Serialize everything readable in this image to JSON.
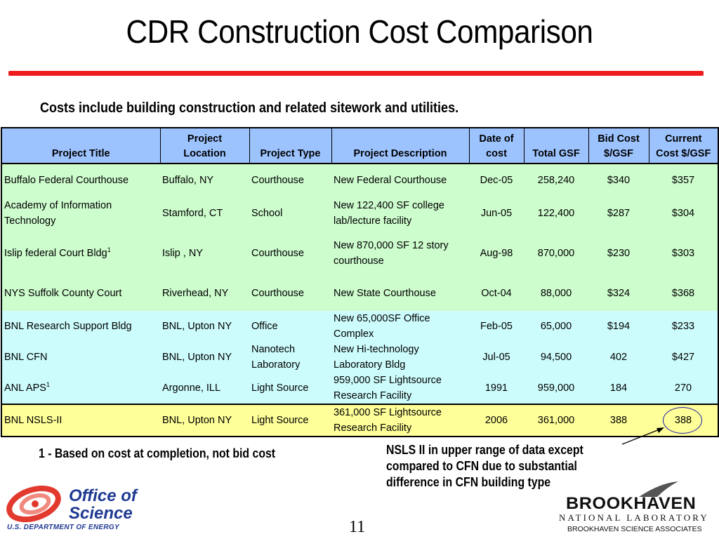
{
  "slide": {
    "title": "CDR Construction Cost Comparison",
    "subtitle": "Costs include building construction and related sitework and utilities.",
    "page_number": "11"
  },
  "table": {
    "headers": {
      "project_title": "Project Title",
      "project_location_1": "Project",
      "project_location_2": "Location",
      "project_type": "Project Type",
      "project_description": "Project Description",
      "date_of_cost_1": "Date of",
      "date_of_cost_2": "cost",
      "total_gsf": "Total GSF",
      "bid_cost_1": "Bid Cost",
      "bid_cost_2": "$/GSF",
      "current_cost_1": "Current",
      "current_cost_2": "Cost $/GSF"
    },
    "rows": [
      {
        "title": "Buffalo Federal Courthouse",
        "sup": "",
        "location": "Buffalo, NY",
        "type": "Courthouse",
        "description": "New Federal Courthouse",
        "date": "Dec-05",
        "gsf": "258,240",
        "bid": "$340",
        "current": "$357"
      },
      {
        "title": "Academy of Information Technology",
        "sup": "",
        "location": "Stamford, CT",
        "type": "School",
        "description": "New 122,400 SF college lab/lecture facility",
        "date": "Jun-05",
        "gsf": "122,400",
        "bid": "$287",
        "current": "$304"
      },
      {
        "title": "Islip federal Court Bldg",
        "sup": "1",
        "location": "Islip , NY",
        "type": "Courthouse",
        "description": "New 870,000 SF 12 story courthouse",
        "date": "Aug-98",
        "gsf": "870,000",
        "bid": "$230",
        "current": "$303"
      },
      {
        "title": "NYS Suffolk County Court",
        "sup": "",
        "location": "Riverhead, NY",
        "type": "Courthouse",
        "description": "New State Courthouse",
        "date": "Oct-04",
        "gsf": "88,000",
        "bid": "$324",
        "current": "$368"
      },
      {
        "title": "BNL Research Support Bldg",
        "sup": "",
        "location": "BNL, Upton NY",
        "type": "Office",
        "description": "New 65,000SF Office Complex",
        "date": "Feb-05",
        "gsf": "65,000",
        "bid": "$194",
        "current": "$233"
      },
      {
        "title": "BNL CFN",
        "sup": "",
        "location": "BNL, Upton NY",
        "type": "Nanotech Laboratory",
        "description": "New Hi-technology Laboratory Bldg",
        "date": "Jul-05",
        "gsf": "94,500",
        "bid": "402",
        "current": "$427"
      },
      {
        "title": "ANL APS",
        "sup": "1",
        "location": "Argonne, ILL",
        "type": "Light Source",
        "description": "959,000 SF Lightsource Research Facility",
        "date": "1991",
        "gsf": "959,000",
        "bid": "184",
        "current": "270"
      },
      {
        "title": "BNL NSLS-II",
        "sup": "",
        "location": "BNL, Upton NY",
        "type": "Light Source",
        "description": "361,000 SF Lightsource Research Facility",
        "date": "2006",
        "gsf": "361,000",
        "bid": "388",
        "current": "388"
      }
    ]
  },
  "footnote": {
    "marker": "1",
    "text": " - Based on cost at completion, not bid cost"
  },
  "callout": {
    "line1": "NSLS II in upper range of data except",
    "line2": "compared to CFN due to substantial",
    "line3": "difference in CFN building type"
  },
  "logos": {
    "doe_line1": "Office of",
    "doe_line2": "Science",
    "doe_sub": "U.S. DEPARTMENT OF ENERGY",
    "bnl_main": "BROOKHAVEN",
    "bnl_natl": "NATIONAL LABORATORY",
    "bnl_assoc": "BROOKHAVEN SCIENCE ASSOCIATES"
  },
  "colors": {
    "header": "#9dc3ff",
    "green_rows": "#cdfccd",
    "cyan_rows": "#cdfcfc",
    "yellow_row": "#ffff99",
    "rule": "#ee1c1c",
    "doe_blue": "#1f3a93",
    "doe_red": "#e23a2e"
  }
}
